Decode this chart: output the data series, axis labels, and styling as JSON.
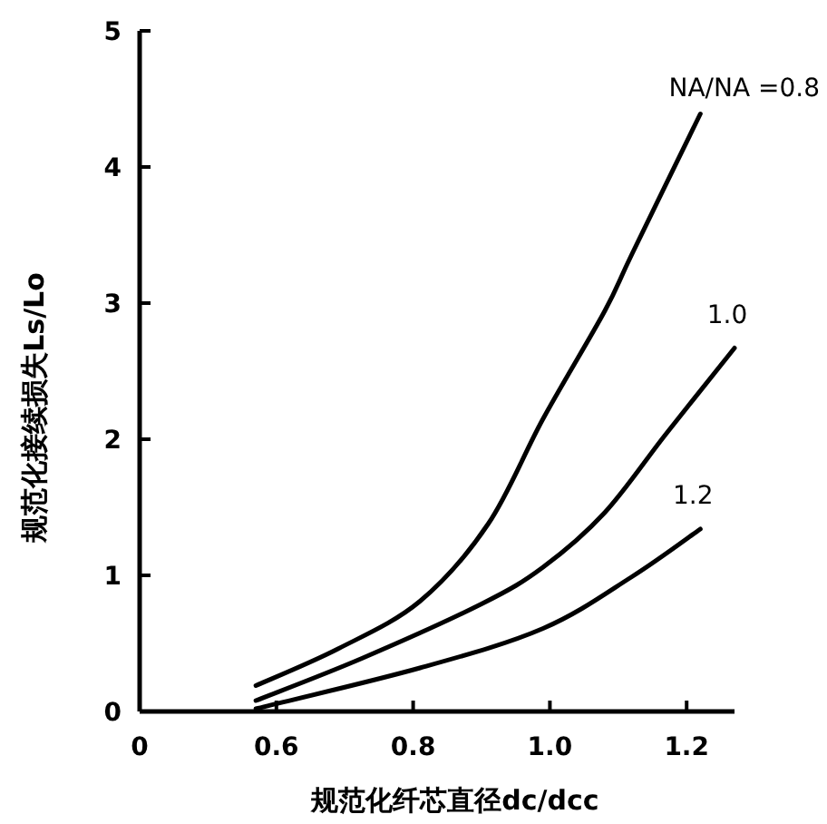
{
  "chart_data": {
    "type": "line",
    "xlabel": "规范化纤芯直径dc/dcc",
    "ylabel": "规范化接续损失Ls/Lo",
    "xlim": [
      0.4,
      1.27
    ],
    "xticks": [
      {
        "value": 0.4,
        "label": "0"
      },
      0.6,
      0.8,
      {
        "value": 1.0,
        "label": "1.0"
      },
      1.2
    ],
    "ylim": [
      0,
      5
    ],
    "yticks": [
      0,
      1,
      2,
      3,
      4,
      5
    ],
    "grid": false,
    "legend": false,
    "marker": "none",
    "line_style": "solid",
    "series": [
      {
        "name": "NA/NA =0.8",
        "color": "#000000",
        "x": [
          0.57,
          0.69,
          0.81,
          0.91,
          0.99,
          1.08,
          1.12,
          1.22
        ],
        "values": [
          0.19,
          0.46,
          0.81,
          1.38,
          2.15,
          2.94,
          3.36,
          4.39
        ]
      },
      {
        "name": "1.0",
        "color": "#000000",
        "x": [
          0.57,
          0.725,
          0.9,
          0.99,
          1.08,
          1.17,
          1.27
        ],
        "values": [
          0.08,
          0.39,
          0.79,
          1.06,
          1.46,
          2.04,
          2.67
        ]
      },
      {
        "name": "1.2",
        "color": "#000000",
        "x": [
          0.57,
          0.81,
          0.99,
          1.12,
          1.22
        ],
        "values": [
          0.02,
          0.32,
          0.61,
          0.99,
          1.34
        ]
      }
    ]
  }
}
